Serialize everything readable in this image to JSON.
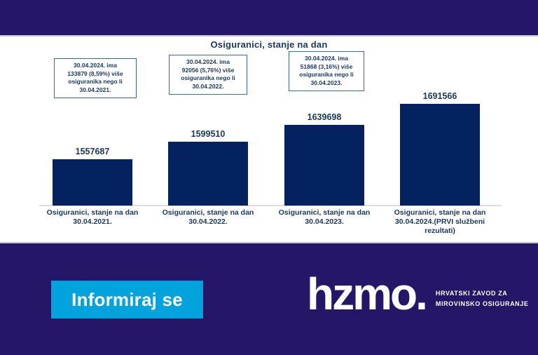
{
  "chart": {
    "title": "Osiguranici, stanje na dan",
    "annotation_boxes": [
      "30.04.2024. ima\n133879 (8,59%) više\nosiguranika nego li\n30.04.2021.",
      "30.04.2024. ima\n92056 (5,76%) više\nosiguranika nego li\n30.04.2022.",
      "30.04.2024. ima\n51868 (3,16%) više\nosiguranika nego li\n30.04.2023."
    ],
    "x_labels": [
      "Osiguranici, stanje na dan\n30.04.2021.",
      "Osiguranici, stanje na dan\n30.04.2022.",
      "Osiguranici, stanje na dan\n30.04.2023.",
      "Osiguranici, stanje na dan\n30.04.2024.(PRVI službeni\nrezultati)"
    ]
  },
  "chart_data": {
    "type": "bar",
    "title": "Osiguranici, stanje na dan",
    "categories": [
      "Osiguranici, stanje na dan 30.04.2021.",
      "Osiguranici, stanje na dan 30.04.2022.",
      "Osiguranici, stanje na dan 30.04.2023.",
      "Osiguranici, stanje na dan 30.04.2024.(PRVI službeni rezultati)"
    ],
    "values": [
      1557687,
      1599510,
      1639698,
      1691566
    ],
    "data_labels": [
      "1557687",
      "1599510",
      "1639698",
      "1691566"
    ],
    "annotations": [
      "30.04.2024. ima 133879 (8,59%) više osiguranika nego li 30.04.2021.",
      "30.04.2024. ima 92056 (5,76%) više osiguranika nego li 30.04.2022.",
      "30.04.2024. ima 51868 (3,16%) više osiguranika nego li 30.04.2023."
    ],
    "xlabel": "",
    "ylabel": "",
    "ylim": [
      1445000,
      1717000
    ],
    "grid": false,
    "legend": false,
    "bar_color": "#042260"
  },
  "footer": {
    "cta_label": "Informiraj se",
    "logo_text": "hzmo.",
    "tagline_line1": "HRVATSKI ZAVOD ZA",
    "tagline_line2": "MIROVINSKO OSIGURANJE"
  },
  "colors": {
    "band_purple": "#251667",
    "bar_navy": "#042260",
    "text_navy": "#1b3864",
    "annotation_border": "#3a66a7",
    "cta_cyan": "#00a3dc",
    "separator_gray": "#c2bfd4",
    "background_white": "#ffffff"
  }
}
